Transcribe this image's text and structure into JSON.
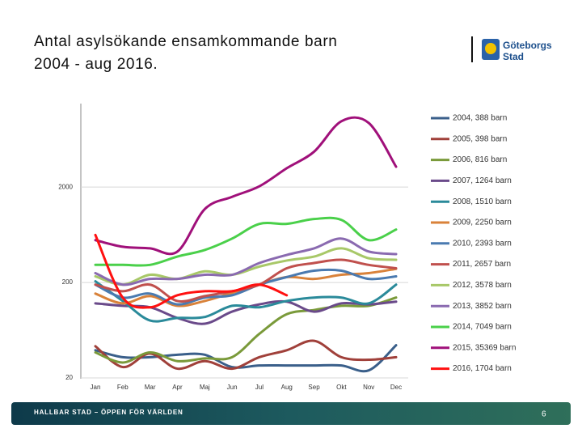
{
  "slide": {
    "title_lines": [
      "Antal asylsökande ensamkommande barn",
      "2004 - aug 2016."
    ],
    "logo_lines": [
      "Göteborgs",
      "Stad"
    ],
    "footer": "HALLBAR STAD – ÖPPEN FÖR VÄRLDEN",
    "page_number": "6"
  },
  "chart_data": {
    "type": "line",
    "log_scale": true,
    "legend": "right",
    "categories": [
      "Jan",
      "Feb",
      "Mar",
      "Apr",
      "Maj",
      "Jun",
      "Jul",
      "Aug",
      "Sep",
      "Okt",
      "Nov",
      "Dec"
    ],
    "ylim": [
      20,
      15000
    ],
    "yticks": [
      20,
      200,
      2000
    ],
    "series": [
      {
        "name": "2004, 388 barn",
        "color": "#3a5f8a",
        "values": [
          39,
          33,
          33,
          35,
          35,
          26,
          27,
          27,
          27,
          27,
          24,
          44
        ]
      },
      {
        "name": "2005, 398 barn",
        "color": "#a0403a",
        "values": [
          43,
          26,
          36,
          25,
          30,
          25,
          33,
          39,
          49,
          33,
          31,
          33
        ]
      },
      {
        "name": "2006, 816 barn",
        "color": "#7a9a3a",
        "values": [
          37,
          29,
          37,
          30,
          32,
          33,
          58,
          93,
          103,
          114,
          114,
          139
        ]
      },
      {
        "name": "2007, 1264 barn",
        "color": "#6a4a8a",
        "values": [
          121,
          114,
          110,
          85,
          74,
          99,
          118,
          126,
          99,
          121,
          118,
          126
        ]
      },
      {
        "name": "2008, 1510 barn",
        "color": "#2a8a9a",
        "values": [
          206,
          128,
          80,
          85,
          87,
          114,
          110,
          128,
          139,
          139,
          121,
          190
        ]
      },
      {
        "name": "2009, 2250 barn",
        "color": "#d9823a",
        "values": [
          153,
          121,
          144,
          114,
          128,
          156,
          190,
          228,
          218,
          241,
          251,
          278
        ]
      },
      {
        "name": "2010, 2393 barn",
        "color": "#4a7ab0",
        "values": [
          190,
          139,
          153,
          118,
          139,
          147,
          190,
          228,
          266,
          266,
          218,
          232
        ]
      },
      {
        "name": "2011, 2657 barn",
        "color": "#c0504d",
        "values": [
          190,
          162,
          190,
          128,
          144,
          162,
          190,
          282,
          320,
          346,
          306,
          282
        ]
      },
      {
        "name": "2012, 3578 barn",
        "color": "#a8c868",
        "values": [
          232,
          190,
          241,
          218,
          262,
          241,
          294,
          340,
          374,
          456,
          359,
          346
        ]
      },
      {
        "name": "2013, 3852 barn",
        "color": "#8a6ab0",
        "values": [
          251,
          190,
          218,
          218,
          241,
          241,
          320,
          389,
          456,
          577,
          422,
          397
        ]
      },
      {
        "name": "2014, 7049 barn",
        "color": "#4ad04a",
        "values": [
          306,
          306,
          306,
          374,
          438,
          577,
          823,
          823,
          925,
          906,
          556,
          718
        ]
      },
      {
        "name": "2015, 35369 barn",
        "color": "#a0107a",
        "values": [
          556,
          474,
          456,
          422,
          1175,
          1580,
          2040,
          3150,
          4700,
          9800,
          9400,
          3270
        ]
      },
      {
        "name": "2016, 1704 barn",
        "color": "#ff1010",
        "values": [
          630,
          139,
          110,
          147,
          162,
          162,
          190,
          147,
          null,
          null,
          null,
          null
        ]
      }
    ]
  }
}
